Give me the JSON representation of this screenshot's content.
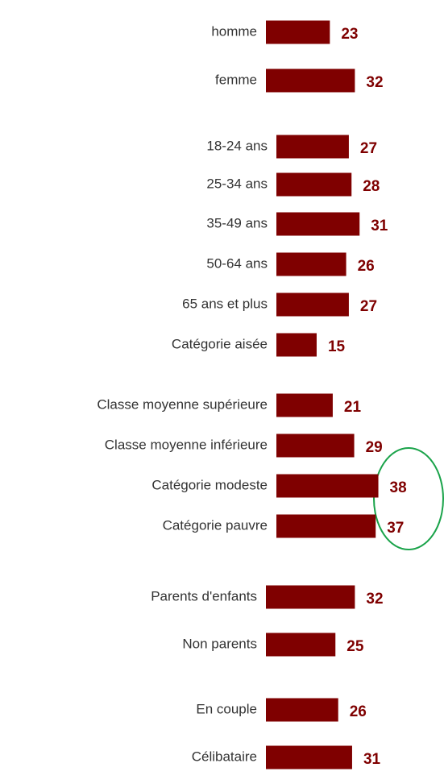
{
  "chart_data": {
    "type": "bar",
    "orientation": "horizontal",
    "color": "#7f0000",
    "groups": [
      {
        "categories": [
          "homme",
          "femme"
        ],
        "values": [
          23,
          32
        ]
      },
      {
        "categories": [
          "18-24 ans",
          "25-34 ans",
          "35-49 ans",
          "50-64 ans",
          "65 ans et plus"
        ],
        "values": [
          27,
          28,
          31,
          26,
          27
        ]
      },
      {
        "categories": [
          "Catégorie aisée",
          "Classe moyenne supérieure",
          "Classe moyenne inférieure",
          "Catégorie modeste",
          "Catégorie pauvre"
        ],
        "values": [
          15,
          21,
          29,
          38,
          37
        ]
      },
      {
        "categories": [
          "Parents d'enfants",
          "Non parents"
        ],
        "values": [
          32,
          25
        ]
      },
      {
        "categories": [
          "En couple",
          "Célibataire"
        ],
        "values": [
          26,
          31
        ]
      }
    ]
  }
}
